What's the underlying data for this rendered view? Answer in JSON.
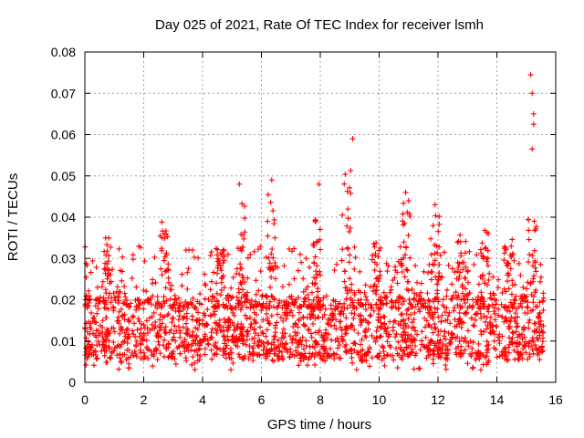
{
  "chart_data": {
    "type": "scatter",
    "title": "Day 025 of 2021, Rate Of TEC Index for receiver lsmh",
    "xlabel": "GPS time / hours",
    "ylabel": "ROTI / TECUs",
    "xlim": [
      0,
      16
    ],
    "ylim": [
      0,
      0.08
    ],
    "xticks": [
      "0",
      "2",
      "4",
      "6",
      "8",
      "10",
      "12",
      "14",
      "16"
    ],
    "yticks": [
      "0",
      "0.01",
      "0.02",
      "0.03",
      "0.04",
      "0.05",
      "0.06",
      "0.07",
      "0.08"
    ],
    "grid": true,
    "marker": "+",
    "series_color": "#ff0000",
    "data_extent_hours": [
      0.0,
      15.6
    ],
    "baseline_roti_band": [
      0.005,
      0.02
    ],
    "notable_peaks": [
      {
        "x": 5.25,
        "y": 0.048
      },
      {
        "x": 6.35,
        "y": 0.049
      },
      {
        "x": 7.95,
        "y": 0.048
      },
      {
        "x": 9.1,
        "y": 0.059
      },
      {
        "x": 10.9,
        "y": 0.046
      },
      {
        "x": 11.9,
        "y": 0.043
      },
      {
        "x": 15.15,
        "y": 0.0745
      },
      {
        "x": 15.2,
        "y": 0.07
      },
      {
        "x": 15.25,
        "y": 0.065
      },
      {
        "x": 15.25,
        "y": 0.0625
      },
      {
        "x": 15.2,
        "y": 0.0565
      }
    ]
  }
}
